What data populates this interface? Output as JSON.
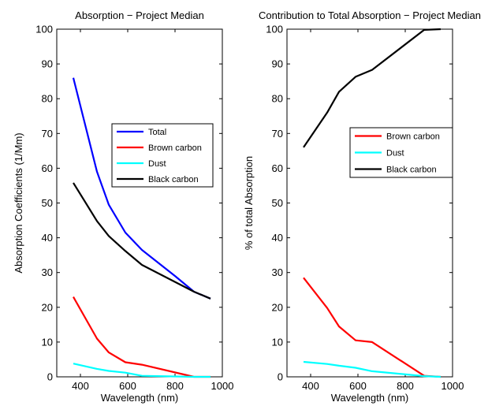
{
  "chart_data": [
    {
      "type": "line",
      "title": "Absorption − Project Median",
      "xlabel": "Wavelength (nm)",
      "ylabel": "Absorption Coefficients (1/Mm)",
      "xlim": [
        300,
        1000
      ],
      "ylim": [
        0,
        100
      ],
      "xticks": [
        400,
        600,
        800,
        1000
      ],
      "yticks": [
        0,
        10,
        20,
        30,
        40,
        50,
        60,
        70,
        80,
        90,
        100
      ],
      "grid": false,
      "legend_position": "center-right",
      "series": [
        {
          "name": "Total",
          "color": "#0000ff",
          "x": [
            370,
            470,
            520,
            590,
            660,
            800,
            880,
            950
          ],
          "y": [
            86,
            59,
            49.5,
            41.5,
            36.5,
            29,
            24.5,
            22.5
          ]
        },
        {
          "name": "Brown carbon",
          "color": "#ff0000",
          "x": [
            370,
            470,
            520,
            590,
            660,
            880,
            950
          ],
          "y": [
            23,
            11,
            7,
            4.2,
            3.5,
            0,
            0
          ]
        },
        {
          "name": "Dust",
          "color": "#00ffff",
          "x": [
            370,
            470,
            520,
            590,
            660,
            880,
            950
          ],
          "y": [
            3.8,
            2.3,
            1.7,
            1.2,
            0.3,
            0,
            0
          ]
        },
        {
          "name": "Black carbon",
          "color": "#000000",
          "x": [
            370,
            470,
            520,
            590,
            660,
            880,
            950
          ],
          "y": [
            55.8,
            44.8,
            40.5,
            36.2,
            32.2,
            24.5,
            22.5
          ]
        }
      ]
    },
    {
      "type": "line",
      "title": "Contribution to Total Absorption − Project Median",
      "xlabel": "Wavelength (nm)",
      "ylabel": "% of total Absorption",
      "xlim": [
        300,
        1000
      ],
      "ylim": [
        0,
        100
      ],
      "xticks": [
        400,
        600,
        800,
        1000
      ],
      "yticks": [
        0,
        10,
        20,
        30,
        40,
        50,
        60,
        70,
        80,
        90,
        100
      ],
      "grid": false,
      "legend_position": "upper-right",
      "series": [
        {
          "name": "Brown carbon",
          "color": "#ff0000",
          "x": [
            370,
            470,
            520,
            590,
            660,
            880,
            950
          ],
          "y": [
            28.5,
            19.8,
            14.5,
            10.5,
            10,
            0.3,
            0
          ]
        },
        {
          "name": "Dust",
          "color": "#00ffff",
          "x": [
            370,
            470,
            520,
            590,
            660,
            880,
            950
          ],
          "y": [
            4.3,
            3.7,
            3.2,
            2.6,
            1.6,
            0.2,
            0
          ]
        },
        {
          "name": "Black carbon",
          "color": "#000000",
          "x": [
            370,
            470,
            520,
            590,
            660,
            880,
            950
          ],
          "y": [
            66,
            76,
            82,
            86.3,
            88.3,
            99.8,
            100
          ]
        }
      ]
    }
  ]
}
